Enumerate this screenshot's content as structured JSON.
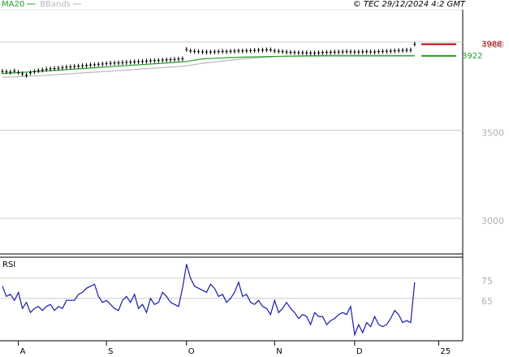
{
  "chart_data": [
    {
      "type": "price",
      "copyright": "© TEC 29/12/2024 4:2 GMT",
      "values": [
        3834,
        3832,
        3830,
        3836,
        3828,
        3820,
        3812,
        3826,
        3832,
        3838,
        3842,
        3846,
        3848,
        3850,
        3852,
        3855,
        3858,
        3860,
        3862,
        3864,
        3866,
        3868,
        3870,
        3872,
        3874,
        3876,
        3878,
        3880,
        3881,
        3882,
        3884,
        3885,
        3886,
        3888,
        3889,
        3890,
        3892,
        3894,
        3895,
        3896,
        3898,
        3899,
        3900,
        3902,
        3904,
        3905,
        3958,
        3950,
        3948,
        3946,
        3945,
        3944,
        3944,
        3945,
        3946,
        3947,
        3946,
        3948,
        3949,
        3950,
        3950,
        3951,
        3952,
        3953,
        3954,
        3955,
        3956,
        3956,
        3950,
        3948,
        3946,
        3944,
        3942,
        3941,
        3940,
        3940,
        3939,
        3938,
        3938,
        3940,
        3941,
        3942,
        3942,
        3943,
        3944,
        3945,
        3946,
        3945,
        3944,
        3944,
        3945,
        3946,
        3945,
        3944,
        3946,
        3947,
        3948,
        3949,
        3950,
        3952,
        3953,
        3954,
        3955,
        3988
      ],
      "color": "#000000",
      "series": [
        {
          "name": "MA20",
          "color": "#22a022",
          "x": [
            0,
            10,
            20,
            30,
            40,
            46,
            50,
            60,
            70,
            80,
            90,
            103
          ],
          "values": [
            3822,
            3835,
            3850,
            3865,
            3880,
            3890,
            3905,
            3915,
            3920,
            3922,
            3922,
            3922
          ]
        },
        {
          "name": "BBands",
          "color": "#b8b8b8",
          "x": [
            0,
            10,
            20,
            30,
            40,
            46,
            50,
            60,
            70,
            80,
            90,
            103
          ],
          "values": [
            3800,
            3810,
            3825,
            3840,
            3855,
            3865,
            3880,
            3905,
            3920,
            3925,
            3925,
            3925
          ]
        }
      ],
      "xlim": [
        -0.6,
        115
      ],
      "xticks": [
        {
          "value": 4,
          "label": "A"
        },
        {
          "value": 26,
          "label": "S"
        },
        {
          "value": 46,
          "label": "O"
        },
        {
          "value": 68,
          "label": "N"
        },
        {
          "value": 88,
          "label": "D"
        },
        {
          "value": 109,
          "label": "25"
        }
      ],
      "ylim": [
        2797,
        4184
      ],
      "yticks": [
        3000,
        3500,
        4000
      ],
      "grid": true
    },
    {
      "type": "line",
      "title": "RSI",
      "color": "#1a1aa8",
      "values": [
        71,
        66,
        67,
        64,
        68,
        60,
        63,
        58,
        60,
        61,
        59,
        61,
        62,
        59,
        61,
        60,
        64,
        64,
        64,
        67,
        68,
        70,
        71,
        72,
        66,
        63,
        64,
        62,
        60,
        59,
        64,
        66,
        63,
        67,
        60,
        62,
        58,
        65,
        62,
        63,
        68,
        66,
        63,
        62,
        61,
        70,
        82,
        75,
        71,
        70,
        69,
        68,
        72,
        70,
        66,
        67,
        63,
        65,
        68,
        73,
        66,
        67,
        63,
        62,
        64,
        61,
        60,
        57,
        64,
        58,
        60,
        63,
        60,
        58,
        55,
        57,
        56,
        52,
        58,
        56,
        56,
        52,
        54,
        55,
        57,
        58,
        57,
        61,
        47,
        52,
        48,
        53,
        51,
        56,
        52,
        51,
        52,
        55,
        59,
        57,
        53,
        54,
        53,
        73
      ],
      "xlim": [
        -0.6,
        115
      ],
      "ylim": [
        44,
        85
      ],
      "yticks": [
        65,
        75
      ],
      "grid": true
    }
  ]
}
